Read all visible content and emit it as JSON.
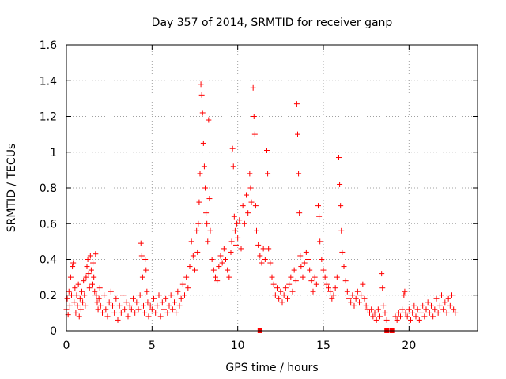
{
  "chart_data": {
    "type": "scatter",
    "title": "Day 357 of 2014, SRMTID for receiver ganp",
    "xlabel": "GPS time / hours",
    "ylabel": "SRMTID / TECUs",
    "xlim": [
      0,
      24
    ],
    "ylim": [
      0,
      1.6
    ],
    "xticks": [
      0,
      5,
      10,
      15,
      20
    ],
    "yticks": [
      0,
      0.2,
      0.4,
      0.6,
      0.8,
      1,
      1.2,
      1.4,
      1.6
    ],
    "ytick_labels": [
      "0",
      "0.2",
      "0.4",
      "0.6",
      "0.8",
      "1",
      "1.2",
      "1.4",
      "1.6"
    ],
    "grid": true,
    "marker": "+",
    "color": "#ff0000",
    "series": [
      {
        "name": "SRMTID",
        "points": [
          [
            0.0,
            0.12
          ],
          [
            0.05,
            0.18
          ],
          [
            0.1,
            0.09
          ],
          [
            0.15,
            0.22
          ],
          [
            0.2,
            0.14
          ],
          [
            0.25,
            0.3
          ],
          [
            0.3,
            0.2
          ],
          [
            0.35,
            0.36
          ],
          [
            0.4,
            0.38
          ],
          [
            0.45,
            0.16
          ],
          [
            0.5,
            0.24
          ],
          [
            0.55,
            0.1
          ],
          [
            0.6,
            0.2
          ],
          [
            0.65,
            0.14
          ],
          [
            0.7,
            0.26
          ],
          [
            0.75,
            0.08
          ],
          [
            0.8,
            0.18
          ],
          [
            0.85,
            0.12
          ],
          [
            0.9,
            0.22
          ],
          [
            0.95,
            0.16
          ],
          [
            1.0,
            0.28
          ],
          [
            1.05,
            0.2
          ],
          [
            1.1,
            0.14
          ],
          [
            1.15,
            0.3
          ],
          [
            1.2,
            0.36
          ],
          [
            1.25,
            0.4
          ],
          [
            1.3,
            0.32
          ],
          [
            1.35,
            0.24
          ],
          [
            1.4,
            0.42
          ],
          [
            1.45,
            0.34
          ],
          [
            1.5,
            0.26
          ],
          [
            1.55,
            0.38
          ],
          [
            1.6,
            0.3
          ],
          [
            1.65,
            0.22
          ],
          [
            1.7,
            0.43
          ],
          [
            1.75,
            0.2
          ],
          [
            1.8,
            0.16
          ],
          [
            1.85,
            0.12
          ],
          [
            1.9,
            0.18
          ],
          [
            1.95,
            0.24
          ],
          [
            2.0,
            0.14
          ],
          [
            2.1,
            0.1
          ],
          [
            2.2,
            0.2
          ],
          [
            2.3,
            0.12
          ],
          [
            2.4,
            0.08
          ],
          [
            2.5,
            0.16
          ],
          [
            2.6,
            0.22
          ],
          [
            2.7,
            0.14
          ],
          [
            2.8,
            0.1
          ],
          [
            2.9,
            0.18
          ],
          [
            3.0,
            0.06
          ],
          [
            3.1,
            0.14
          ],
          [
            3.2,
            0.1
          ],
          [
            3.3,
            0.2
          ],
          [
            3.4,
            0.12
          ],
          [
            3.5,
            0.16
          ],
          [
            3.6,
            0.08
          ],
          [
            3.7,
            0.14
          ],
          [
            3.8,
            0.12
          ],
          [
            3.9,
            0.18
          ],
          [
            4.0,
            0.1
          ],
          [
            4.1,
            0.16
          ],
          [
            4.2,
            0.12
          ],
          [
            4.3,
            0.2
          ],
          [
            4.35,
            0.49
          ],
          [
            4.4,
            0.42
          ],
          [
            4.45,
            0.3
          ],
          [
            4.5,
            0.14
          ],
          [
            4.55,
            0.1
          ],
          [
            4.6,
            0.4
          ],
          [
            4.65,
            0.34
          ],
          [
            4.7,
            0.22
          ],
          [
            4.75,
            0.16
          ],
          [
            4.8,
            0.08
          ],
          [
            4.9,
            0.14
          ],
          [
            5.0,
            0.12
          ],
          [
            5.1,
            0.18
          ],
          [
            5.2,
            0.1
          ],
          [
            5.3,
            0.14
          ],
          [
            5.4,
            0.2
          ],
          [
            5.5,
            0.08
          ],
          [
            5.6,
            0.16
          ],
          [
            5.7,
            0.12
          ],
          [
            5.8,
            0.18
          ],
          [
            5.9,
            0.1
          ],
          [
            6.0,
            0.14
          ],
          [
            6.1,
            0.2
          ],
          [
            6.2,
            0.12
          ],
          [
            6.3,
            0.16
          ],
          [
            6.4,
            0.1
          ],
          [
            6.5,
            0.22
          ],
          [
            6.6,
            0.14
          ],
          [
            6.7,
            0.18
          ],
          [
            6.8,
            0.26
          ],
          [
            6.9,
            0.2
          ],
          [
            7.0,
            0.3
          ],
          [
            7.1,
            0.24
          ],
          [
            7.2,
            0.36
          ],
          [
            7.3,
            0.5
          ],
          [
            7.4,
            0.42
          ],
          [
            7.5,
            0.34
          ],
          [
            7.6,
            0.56
          ],
          [
            7.65,
            0.44
          ],
          [
            7.7,
            0.6
          ],
          [
            7.75,
            0.72
          ],
          [
            7.8,
            0.88
          ],
          [
            7.85,
            1.38
          ],
          [
            7.9,
            1.32
          ],
          [
            7.95,
            1.22
          ],
          [
            8.0,
            1.05
          ],
          [
            8.05,
            0.92
          ],
          [
            8.1,
            0.8
          ],
          [
            8.15,
            0.66
          ],
          [
            8.2,
            0.6
          ],
          [
            8.25,
            0.5
          ],
          [
            8.3,
            1.18
          ],
          [
            8.35,
            0.74
          ],
          [
            8.4,
            0.56
          ],
          [
            8.5,
            0.4
          ],
          [
            8.6,
            0.34
          ],
          [
            8.7,
            0.3
          ],
          [
            8.8,
            0.28
          ],
          [
            8.9,
            0.36
          ],
          [
            9.0,
            0.42
          ],
          [
            9.1,
            0.38
          ],
          [
            9.2,
            0.46
          ],
          [
            9.3,
            0.4
          ],
          [
            9.4,
            0.34
          ],
          [
            9.5,
            0.3
          ],
          [
            9.6,
            0.44
          ],
          [
            9.65,
            0.5
          ],
          [
            9.7,
            1.02
          ],
          [
            9.75,
            0.92
          ],
          [
            9.8,
            0.64
          ],
          [
            9.85,
            0.56
          ],
          [
            9.9,
            0.48
          ],
          [
            9.95,
            0.6
          ],
          [
            10.0,
            0.52
          ],
          [
            10.1,
            0.62
          ],
          [
            10.2,
            0.46
          ],
          [
            10.3,
            0.7
          ],
          [
            10.4,
            0.6
          ],
          [
            10.5,
            0.76
          ],
          [
            10.6,
            0.66
          ],
          [
            10.7,
            0.88
          ],
          [
            10.75,
            0.8
          ],
          [
            10.8,
            0.72
          ],
          [
            10.9,
            1.36
          ],
          [
            10.95,
            1.2
          ],
          [
            11.0,
            1.1
          ],
          [
            11.05,
            0.7
          ],
          [
            11.1,
            0.56
          ],
          [
            11.2,
            0.48
          ],
          [
            11.3,
            0.42
          ],
          [
            11.4,
            0.38
          ],
          [
            11.5,
            0.46
          ],
          [
            11.6,
            0.4
          ],
          [
            11.7,
            1.01
          ],
          [
            11.75,
            0.88
          ],
          [
            11.8,
            0.46
          ],
          [
            11.9,
            0.38
          ],
          [
            12.0,
            0.3
          ],
          [
            12.1,
            0.26
          ],
          [
            12.2,
            0.2
          ],
          [
            12.3,
            0.24
          ],
          [
            12.4,
            0.18
          ],
          [
            12.5,
            0.22
          ],
          [
            12.6,
            0.16
          ],
          [
            12.7,
            0.2
          ],
          [
            12.8,
            0.24
          ],
          [
            12.9,
            0.18
          ],
          [
            13.0,
            0.26
          ],
          [
            13.1,
            0.3
          ],
          [
            13.2,
            0.22
          ],
          [
            13.3,
            0.34
          ],
          [
            13.4,
            0.28
          ],
          [
            13.45,
            1.27
          ],
          [
            13.5,
            1.1
          ],
          [
            13.55,
            0.88
          ],
          [
            13.6,
            0.66
          ],
          [
            13.65,
            0.42
          ],
          [
            13.7,
            0.36
          ],
          [
            13.8,
            0.3
          ],
          [
            13.9,
            0.38
          ],
          [
            14.0,
            0.44
          ],
          [
            14.1,
            0.4
          ],
          [
            14.2,
            0.34
          ],
          [
            14.3,
            0.28
          ],
          [
            14.4,
            0.22
          ],
          [
            14.5,
            0.3
          ],
          [
            14.6,
            0.26
          ],
          [
            14.7,
            0.7
          ],
          [
            14.75,
            0.64
          ],
          [
            14.8,
            0.5
          ],
          [
            14.9,
            0.4
          ],
          [
            15.0,
            0.34
          ],
          [
            15.1,
            0.3
          ],
          [
            15.2,
            0.26
          ],
          [
            15.3,
            0.24
          ],
          [
            15.4,
            0.22
          ],
          [
            15.5,
            0.18
          ],
          [
            15.6,
            0.2
          ],
          [
            15.7,
            0.24
          ],
          [
            15.8,
            0.3
          ],
          [
            15.9,
            0.97
          ],
          [
            15.95,
            0.82
          ],
          [
            16.0,
            0.7
          ],
          [
            16.05,
            0.56
          ],
          [
            16.1,
            0.44
          ],
          [
            16.2,
            0.36
          ],
          [
            16.3,
            0.28
          ],
          [
            16.4,
            0.22
          ],
          [
            16.5,
            0.18
          ],
          [
            16.6,
            0.16
          ],
          [
            16.7,
            0.2
          ],
          [
            16.8,
            0.14
          ],
          [
            16.9,
            0.18
          ],
          [
            17.0,
            0.22
          ],
          [
            17.1,
            0.16
          ],
          [
            17.2,
            0.2
          ],
          [
            17.3,
            0.26
          ],
          [
            17.4,
            0.18
          ],
          [
            17.5,
            0.14
          ],
          [
            17.6,
            0.12
          ],
          [
            17.7,
            0.1
          ],
          [
            17.8,
            0.12
          ],
          [
            17.9,
            0.08
          ],
          [
            18.0,
            0.1
          ],
          [
            18.1,
            0.06
          ],
          [
            18.2,
            0.12
          ],
          [
            18.3,
            0.08
          ],
          [
            18.4,
            0.32
          ],
          [
            18.45,
            0.24
          ],
          [
            18.5,
            0.14
          ],
          [
            18.6,
            0.1
          ],
          [
            18.7,
            0.06
          ],
          [
            19.2,
            0.08
          ],
          [
            19.3,
            0.06
          ],
          [
            19.4,
            0.1
          ],
          [
            19.5,
            0.08
          ],
          [
            19.6,
            0.12
          ],
          [
            19.7,
            0.2
          ],
          [
            19.75,
            0.22
          ],
          [
            19.8,
            0.1
          ],
          [
            19.9,
            0.08
          ],
          [
            20.0,
            0.12
          ],
          [
            20.1,
            0.06
          ],
          [
            20.2,
            0.1
          ],
          [
            20.3,
            0.14
          ],
          [
            20.4,
            0.08
          ],
          [
            20.5,
            0.12
          ],
          [
            20.6,
            0.06
          ],
          [
            20.7,
            0.1
          ],
          [
            20.8,
            0.14
          ],
          [
            20.9,
            0.08
          ],
          [
            21.0,
            0.12
          ],
          [
            21.1,
            0.16
          ],
          [
            21.2,
            0.1
          ],
          [
            21.3,
            0.14
          ],
          [
            21.4,
            0.08
          ],
          [
            21.5,
            0.12
          ],
          [
            21.6,
            0.18
          ],
          [
            21.7,
            0.1
          ],
          [
            21.8,
            0.14
          ],
          [
            21.9,
            0.2
          ],
          [
            22.0,
            0.12
          ],
          [
            22.1,
            0.16
          ],
          [
            22.2,
            0.1
          ],
          [
            22.3,
            0.18
          ],
          [
            22.4,
            0.14
          ],
          [
            22.5,
            0.2
          ],
          [
            22.6,
            0.12
          ],
          [
            22.7,
            0.1
          ]
        ]
      }
    ],
    "outliers": [
      [
        11.3,
        0.0
      ],
      [
        18.7,
        0.0
      ],
      [
        19.0,
        0.0
      ]
    ]
  }
}
